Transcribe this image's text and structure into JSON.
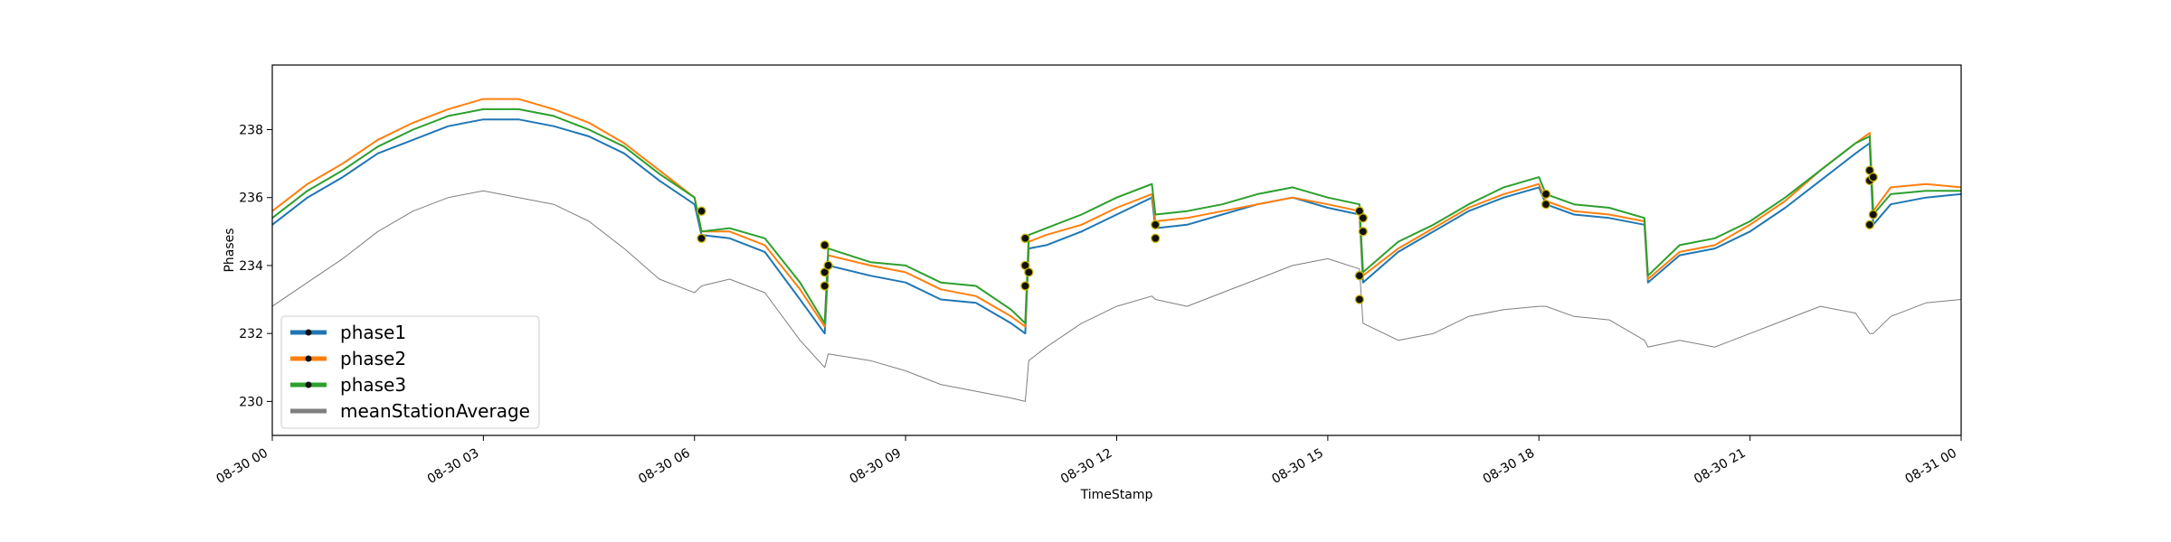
{
  "chart_data": {
    "type": "line",
    "title": "",
    "xlabel": "TimeStamp",
    "ylabel": "Phases",
    "x_unit": "hours after 08-30 00:00",
    "xlim": [
      0,
      24
    ],
    "ylim": [
      229.0,
      239.9
    ],
    "x_ticks": [
      {
        "value": 0,
        "label": "08-30 00"
      },
      {
        "value": 3,
        "label": "08-30 03"
      },
      {
        "value": 6,
        "label": "08-30 06"
      },
      {
        "value": 9,
        "label": "08-30 09"
      },
      {
        "value": 12,
        "label": "08-30 12"
      },
      {
        "value": 15,
        "label": "08-30 15"
      },
      {
        "value": 18,
        "label": "08-30 18"
      },
      {
        "value": 21,
        "label": "08-30 21"
      },
      {
        "value": 24,
        "label": "08-31 00"
      }
    ],
    "y_ticks": [
      {
        "value": 230,
        "label": "230"
      },
      {
        "value": 232,
        "label": "232"
      },
      {
        "value": 234,
        "label": "234"
      },
      {
        "value": 236,
        "label": "236"
      },
      {
        "value": 238,
        "label": "238"
      }
    ],
    "grid": false,
    "legend_position": "lower-left",
    "x": [
      0,
      0.5,
      1,
      1.5,
      2,
      2.5,
      3,
      3.5,
      4,
      4.5,
      5,
      5.5,
      6,
      6.1,
      6.5,
      7,
      7.5,
      7.85,
      7.9,
      8.5,
      9,
      9.5,
      10,
      10.5,
      10.7,
      10.75,
      11,
      11.5,
      12,
      12.5,
      12.55,
      13,
      13.5,
      14,
      14.5,
      15,
      15.45,
      15.5,
      16,
      16.5,
      17,
      17.5,
      18,
      18.1,
      18.5,
      19,
      19.5,
      19.55,
      20,
      20.5,
      21,
      21.5,
      22,
      22.5,
      22.7,
      22.75,
      23,
      23.5,
      24
    ],
    "series": [
      {
        "name": "phase1",
        "color": "#1f77b4",
        "values": [
          235.2,
          236.0,
          236.6,
          237.3,
          237.7,
          238.1,
          238.3,
          238.3,
          238.1,
          237.8,
          237.3,
          236.5,
          235.8,
          234.9,
          234.8,
          234.4,
          233.0,
          232.0,
          234.0,
          233.7,
          233.5,
          233.0,
          232.9,
          232.3,
          232.0,
          234.5,
          234.6,
          235.0,
          235.5,
          236.0,
          235.1,
          235.2,
          235.5,
          235.8,
          236.0,
          235.7,
          235.5,
          233.5,
          234.4,
          235.0,
          235.6,
          236.0,
          236.3,
          235.8,
          235.5,
          235.4,
          235.2,
          233.5,
          234.3,
          234.5,
          235.0,
          235.7,
          236.5,
          237.3,
          237.6,
          235.2,
          235.8,
          236.0,
          236.1
        ]
      },
      {
        "name": "phase2",
        "color": "#ff7f0e",
        "values": [
          235.6,
          236.4,
          237.0,
          237.7,
          238.2,
          238.6,
          238.9,
          238.9,
          238.6,
          238.2,
          237.6,
          236.8,
          236.0,
          235.0,
          235.0,
          234.6,
          233.3,
          232.2,
          234.3,
          234.0,
          233.8,
          233.3,
          233.1,
          232.5,
          232.2,
          234.7,
          234.9,
          235.2,
          235.7,
          236.1,
          235.3,
          235.4,
          235.6,
          235.8,
          236.0,
          235.8,
          235.6,
          233.7,
          234.5,
          235.1,
          235.7,
          236.1,
          236.4,
          235.9,
          235.6,
          235.5,
          235.3,
          233.6,
          234.4,
          234.6,
          235.2,
          235.9,
          236.8,
          237.6,
          237.9,
          235.6,
          236.3,
          236.4,
          236.3
        ]
      },
      {
        "name": "phase3",
        "color": "#2ca02c",
        "values": [
          235.4,
          236.2,
          236.8,
          237.5,
          238.0,
          238.4,
          238.6,
          238.6,
          238.4,
          238.0,
          237.5,
          236.7,
          236.0,
          235.0,
          235.1,
          234.8,
          233.5,
          232.3,
          234.5,
          234.1,
          234.0,
          233.5,
          233.4,
          232.7,
          232.3,
          234.9,
          235.1,
          235.5,
          236.0,
          236.4,
          235.5,
          235.6,
          235.8,
          236.1,
          236.3,
          236.0,
          235.8,
          233.8,
          234.7,
          235.2,
          235.8,
          236.3,
          236.6,
          236.1,
          235.8,
          235.7,
          235.4,
          233.7,
          234.6,
          234.8,
          235.3,
          236.0,
          236.8,
          237.6,
          237.8,
          235.5,
          236.1,
          236.2,
          236.2
        ]
      },
      {
        "name": "meanStationAverage",
        "color": "#7f7f7f",
        "values": [
          232.8,
          233.5,
          234.2,
          235.0,
          235.6,
          236.0,
          236.2,
          236.0,
          235.8,
          235.3,
          234.5,
          233.6,
          233.2,
          233.4,
          233.6,
          233.2,
          231.8,
          231.0,
          231.4,
          231.2,
          230.9,
          230.5,
          230.3,
          230.1,
          230.0,
          231.2,
          231.6,
          232.3,
          232.8,
          233.1,
          233.0,
          232.8,
          233.2,
          233.6,
          234.0,
          234.2,
          233.9,
          232.3,
          231.8,
          232.0,
          232.5,
          232.7,
          232.8,
          232.8,
          232.5,
          232.4,
          231.8,
          231.6,
          231.8,
          231.6,
          232.0,
          232.4,
          232.8,
          232.6,
          232.0,
          232.0,
          232.5,
          232.9,
          233.0
        ]
      }
    ],
    "anomaly_markers": {
      "marker_fill": "#111111",
      "marker_edge": "#c8b400",
      "points": [
        {
          "x": 6.1,
          "series": "phase1",
          "y": 235.6
        },
        {
          "x": 6.1,
          "series": "phase2",
          "y": 234.8
        },
        {
          "x": 7.85,
          "series": "phase1",
          "y": 233.4
        },
        {
          "x": 7.85,
          "series": "phase2",
          "y": 234.6
        },
        {
          "x": 7.85,
          "series": "phase3",
          "y": 233.8
        },
        {
          "x": 7.9,
          "series": "phase1",
          "y": 234.0
        },
        {
          "x": 10.7,
          "series": "phase1",
          "y": 233.4
        },
        {
          "x": 10.7,
          "series": "phase2",
          "y": 234.8
        },
        {
          "x": 10.7,
          "series": "phase3",
          "y": 234.0
        },
        {
          "x": 10.75,
          "series": "phase1",
          "y": 233.8
        },
        {
          "x": 12.55,
          "series": "phase1",
          "y": 235.2
        },
        {
          "x": 12.55,
          "series": "phase2",
          "y": 234.8
        },
        {
          "x": 15.45,
          "series": "phase1",
          "y": 233.0
        },
        {
          "x": 15.45,
          "series": "phase2",
          "y": 235.6
        },
        {
          "x": 15.45,
          "series": "phase3",
          "y": 233.7
        },
        {
          "x": 15.5,
          "series": "phase1",
          "y": 235.0
        },
        {
          "x": 15.5,
          "series": "phase3",
          "y": 235.4
        },
        {
          "x": 18.1,
          "series": "phase1",
          "y": 236.1
        },
        {
          "x": 18.1,
          "series": "phase2",
          "y": 235.8
        },
        {
          "x": 22.7,
          "series": "phase1",
          "y": 235.2
        },
        {
          "x": 22.7,
          "series": "phase2",
          "y": 236.8
        },
        {
          "x": 22.7,
          "series": "phase3",
          "y": 236.5
        },
        {
          "x": 22.75,
          "series": "phase1",
          "y": 235.5
        },
        {
          "x": 22.75,
          "series": "phase3",
          "y": 236.6
        }
      ]
    }
  }
}
